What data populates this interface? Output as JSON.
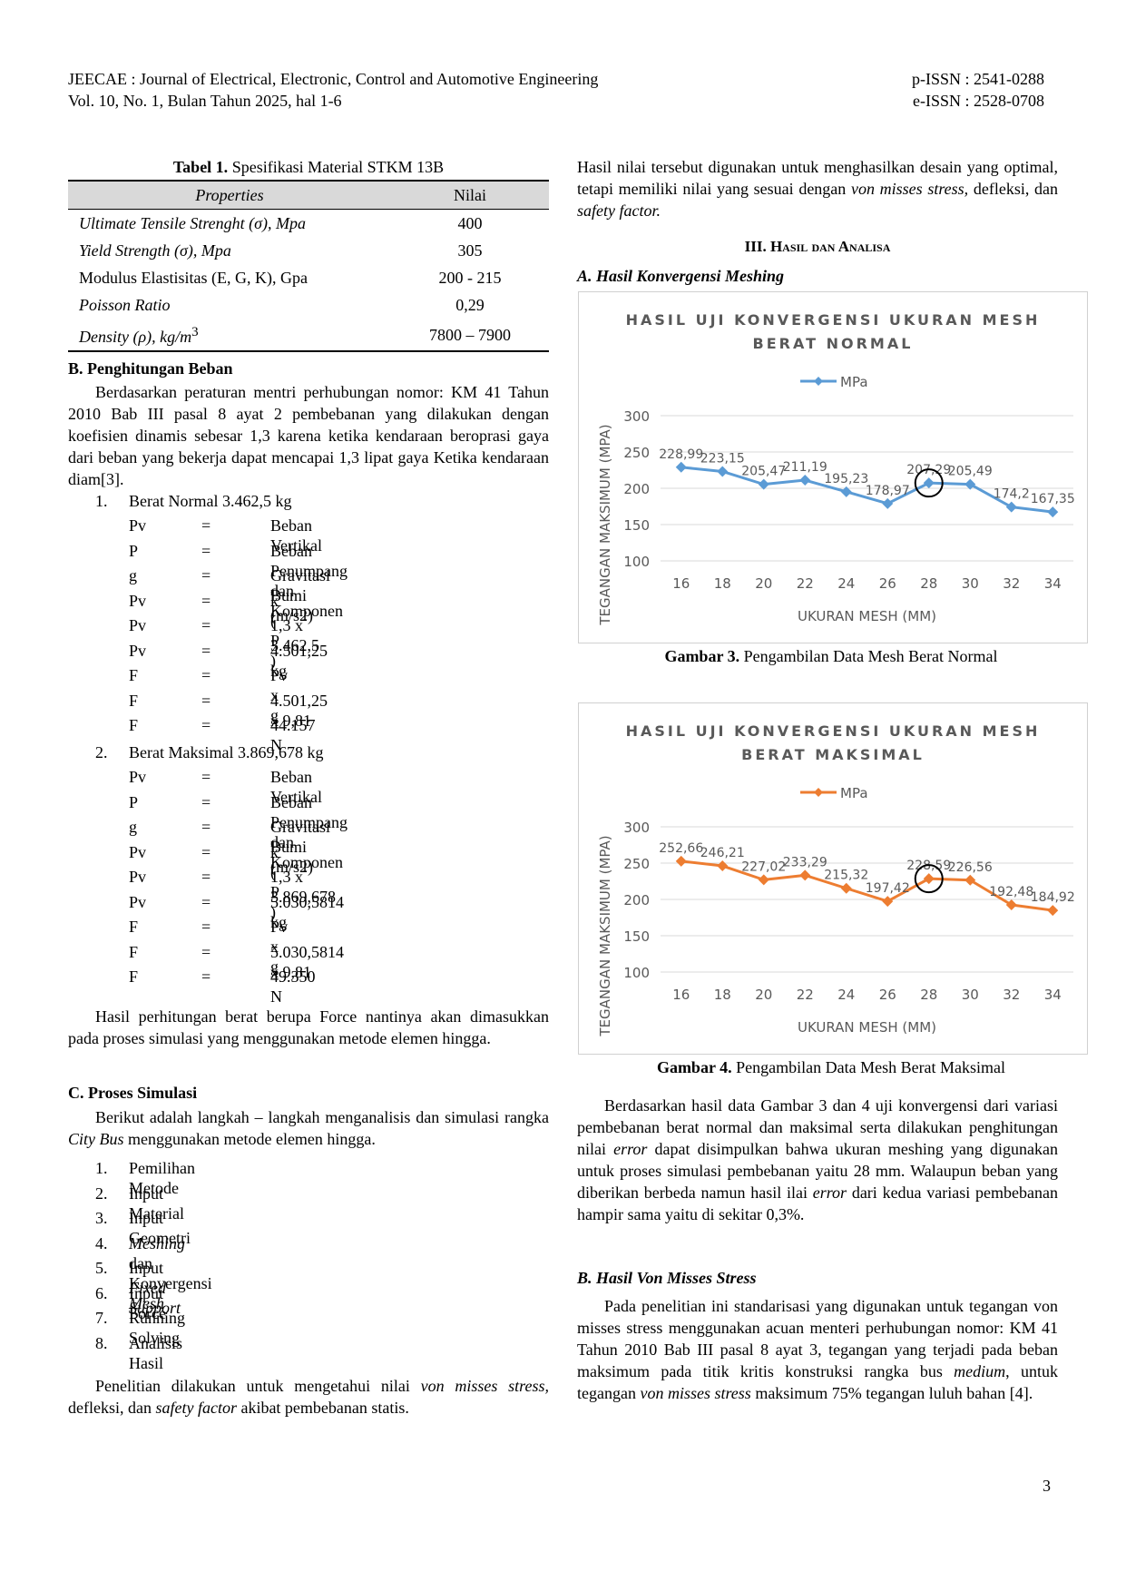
{
  "header": {
    "journal": "JEECAE : Journal of Electrical, Electronic, Control and Automotive Engineering",
    "volume": "Vol. 10, No. 1, Bulan Tahun 2025, hal 1-6",
    "pissn": "p-ISSN : 2541-0288",
    "eissn": "e-ISSN : 2528-0708"
  },
  "table1": {
    "caption_bold": "Tabel 1.",
    "caption_rest": "Spesifikasi Material STKM 13B",
    "col1": "Properties",
    "col2": "Nilai",
    "rows": [
      {
        "prop": "Ultimate Tensile Strenght (σ), Mpa",
        "val": "400"
      },
      {
        "prop": "Yield Strength (σ), Mpa",
        "val": "305"
      },
      {
        "prop": "Modulus Elastisitas (E, G, K), Gpa",
        "val": "200 - 215"
      },
      {
        "prop": "Poisson Ratio",
        "val": "0,29"
      },
      {
        "prop": "Density (ρ), kg/m",
        "sup": "3",
        "val": "7800 – 7900"
      }
    ]
  },
  "sectionB": {
    "heading": "B.  Penghitungan Beban",
    "para": "Berdasarkan peraturan mentri perhubungan nomor: KM 41 Tahun 2010 Bab III pasal 8 ayat 2 pembebanan yang dilakukan dengan koefisien dinamis sebesar 1,3 karena ketika kendaraan beroprasi gaya dari beban yang bekerja dapat mencapai 1,3 lipat gaya Ketika kendaraan diam[3].",
    "item1_num": "1.",
    "item1": "Berat Normal 3.462,5 kg",
    "eq1": [
      [
        "Pv",
        "=",
        "Beban Vertikal"
      ],
      [
        "P",
        "=",
        "Beban Penumpang dan Komponen"
      ],
      [
        "g",
        "=",
        "Gravitasi Bumi (m/s2)"
      ],
      [
        "Pv",
        "=",
        "k ( P )"
      ],
      [
        "Pv",
        "=",
        "1,3 x 3.462,5"
      ],
      [
        "Pv",
        "=",
        "4.501,25 kg"
      ],
      [
        "F",
        "=",
        "Pv x g"
      ],
      [
        "F",
        "=",
        "4.501,25 x 9,81"
      ],
      [
        "F",
        "=",
        "44.157 N"
      ]
    ],
    "item2_num": "2.",
    "item2": "Berat Maksimal 3.869,678 kg",
    "eq2": [
      [
        "Pv",
        "=",
        "Beban Vertikal"
      ],
      [
        "P",
        "=",
        "Beban Penumpang dan Komponen"
      ],
      [
        "g",
        "=",
        "Gravitasi Bumi (m/s2)"
      ],
      [
        "Pv",
        "=",
        "k ( P )"
      ],
      [
        "Pv",
        "=",
        "1,3 x 3.869,678"
      ],
      [
        "Pv",
        "=",
        "5.030,5814 kg"
      ],
      [
        "F",
        "=",
        "Pv x g"
      ],
      [
        "F",
        "=",
        "5.030,5814 x 9,81"
      ],
      [
        "F",
        "=",
        "49.350 N"
      ]
    ],
    "after": "Hasil perhitungan berat berupa Force nantinya akan dimasukkan pada proses simulasi yang menggunakan metode elemen hingga."
  },
  "sectionC": {
    "heading": "C.  Proses Simulasi",
    "para_a": "Berikut adalah langkah – langkah menganalisis dan simulasi rangka ",
    "para_i": "City Bus",
    "para_b": " menggunakan metode elemen hingga.",
    "steps": [
      {
        "n": "1.",
        "t": "Pemilihan Metode"
      },
      {
        "n": "2.",
        "t": "Input Material"
      },
      {
        "n": "3.",
        "t": "Input Geometri"
      },
      {
        "n": "4.",
        "t": "Meshing dan Konvergensi Mesh"
      },
      {
        "n": "5.",
        "t": "Input Fixed Support"
      },
      {
        "n": "6.",
        "t": "Input Force"
      },
      {
        "n": "7.",
        "t": "Running Solving"
      },
      {
        "n": "8.",
        "t": "Analisis Hasil"
      }
    ],
    "last_a": "Penelitian dilakukan untuk mengetahui nilai ",
    "last_i1": "von misses stress,",
    "last_b": " defleksi, dan ",
    "last_i2": "safety factor",
    "last_c": " akibat pembebanan statis."
  },
  "right": {
    "top_a": "Hasil nilai tersebut digunakan untuk menghasilkan desain yang optimal, tetapi memiliki nilai yang sesuai dengan ",
    "top_i1": "von misses stress,",
    "top_b": " defleksi, dan ",
    "top_i2": "safety factor.",
    "section3": "III.  Hasil dan Analisa",
    "subA": "A.  Hasil Konvergensi Meshing",
    "fig3_bold": "Gambar 3.",
    "fig3_rest": " Pengambilan Data Mesh Berat Normal",
    "fig4_bold": "Gambar 4.",
    "fig4_rest": " Pengambilan Data Mesh Berat Maksimal",
    "para1_a": "Berdasarkan hasil data Gambar 3 dan 4 uji konvergensi dari variasi pembebanan berat normal dan maksimal serta dilakukan penghitungan nilai ",
    "para1_i1": "error",
    "para1_b": " dapat disimpulkan bahwa ukuran meshing yang digunakan untuk proses simulasi pembebanan yaitu 28 mm. Walaupun beban yang diberikan berbeda namun hasil ilai ",
    "para1_i2": "error",
    "para1_c": " dari kedua variasi pembebanan hampir sama yaitu di sekitar 0,3%.",
    "subB": "B.  Hasil Von Misses Stress",
    "para2_a": "Pada penelitian ini standarisasi yang digunakan untuk tegangan von misses stress menggunakan acuan menteri perhubungan nomor: KM 41 Tahun 2010 Bab III pasal 8 ayat 3, tegangan yang terjadi pada beban maksimum pada titik kritis konstruksi rangka bus ",
    "para2_i1": "medium",
    "para2_b": ", untuk tegangan ",
    "para2_i2": "von misses stress",
    "para2_c": " maksimum 75% tegangan luluh bahan [4]."
  },
  "page_number": "3",
  "chart_data": [
    {
      "type": "line",
      "title_line1": "HASIL UJI KONVERGENSI UKURAN MESH",
      "title_line2": "BERAT NORMAL",
      "x": [
        16,
        18,
        20,
        22,
        24,
        26,
        28,
        30,
        32,
        34
      ],
      "series": [
        {
          "name": "MPa",
          "values": [
            228.99,
            223.15,
            205.47,
            211.19,
            195.23,
            178.97,
            207.29,
            205.49,
            174.2,
            167.35
          ]
        }
      ],
      "labels": [
        "228,99",
        "223,15",
        "205,47",
        "211,19",
        "195,23",
        "178,97",
        "207,29",
        "205,49",
        "174,2",
        "167,35"
      ],
      "xlabel": "UKURAN MESH (MM)",
      "ylabel": "TEGANGAN MAKSIMUM (MPA)",
      "ylim": [
        100,
        300
      ],
      "yticks": [
        100,
        150,
        200,
        250,
        300
      ],
      "grid": true,
      "legend": "top",
      "color": "#5b9bd5",
      "highlight_x": 28
    },
    {
      "type": "line",
      "title_line1": "HASIL UJI KONVERGENSI UKURAN MESH",
      "title_line2": "BERAT MAKSIMAL",
      "x": [
        16,
        18,
        20,
        22,
        24,
        26,
        28,
        30,
        32,
        34
      ],
      "series": [
        {
          "name": "MPa",
          "values": [
            252.66,
            246.21,
            227.02,
            233.29,
            215.32,
            197.42,
            228.59,
            226.56,
            192.48,
            184.92
          ]
        }
      ],
      "labels": [
        "252,66",
        "246,21",
        "227,02",
        "233,29",
        "215,32",
        "197,42",
        "228,59",
        "226,56",
        "192,48",
        "184,92"
      ],
      "xlabel": "UKURAN MESH (MM)",
      "ylabel": "TEGANGAN MAKSIMUM (MPA)",
      "ylim": [
        100,
        300
      ],
      "yticks": [
        100,
        150,
        200,
        250,
        300
      ],
      "grid": true,
      "legend": "top",
      "color": "#ed7d31",
      "highlight_x": 28
    }
  ]
}
